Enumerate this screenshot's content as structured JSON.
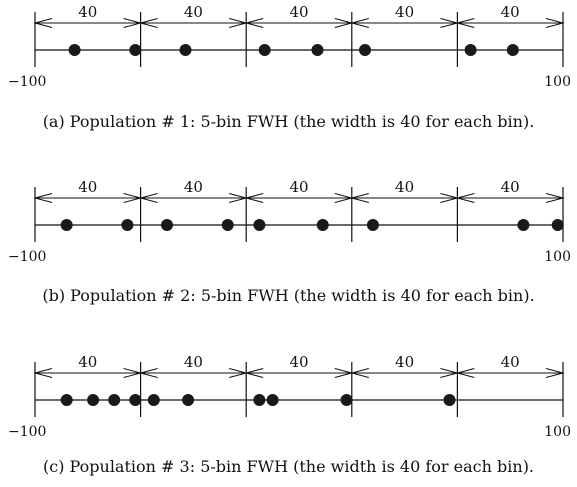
{
  "figure": {
    "panels": [
      {
        "id": "a",
        "caption": "(a) Population # 1: 5-bin FWH (the width is 40 for each bin).",
        "axis_min_label": "−100",
        "axis_max_label": "100",
        "bin_width_labels": [
          "40",
          "40",
          "40",
          "40",
          "40"
        ],
        "points": [
          -85,
          -62,
          -43,
          -13,
          7,
          25,
          65,
          81
        ]
      },
      {
        "id": "b",
        "caption": "(b) Population # 2: 5-bin FWH (the width is 40 for each bin).",
        "axis_min_label": "−100",
        "axis_max_label": "100",
        "bin_width_labels": [
          "40",
          "40",
          "40",
          "40",
          "40"
        ],
        "points": [
          -88,
          -65,
          -50,
          -27,
          -15,
          9,
          28,
          85,
          98
        ]
      },
      {
        "id": "c",
        "caption": "(c) Population # 3: 5-bin FWH (the width is 40 for each bin).",
        "axis_min_label": "−100",
        "axis_max_label": "100",
        "bin_width_labels": [
          "40",
          "40",
          "40",
          "40",
          "40"
        ],
        "points": [
          -88,
          -78,
          -70,
          -62,
          -55,
          -42,
          -15,
          -10,
          18,
          57
        ]
      }
    ],
    "axis_range": [
      -100,
      100
    ],
    "bin_edges": [
      -100,
      -60,
      -20,
      20,
      60,
      100
    ]
  }
}
